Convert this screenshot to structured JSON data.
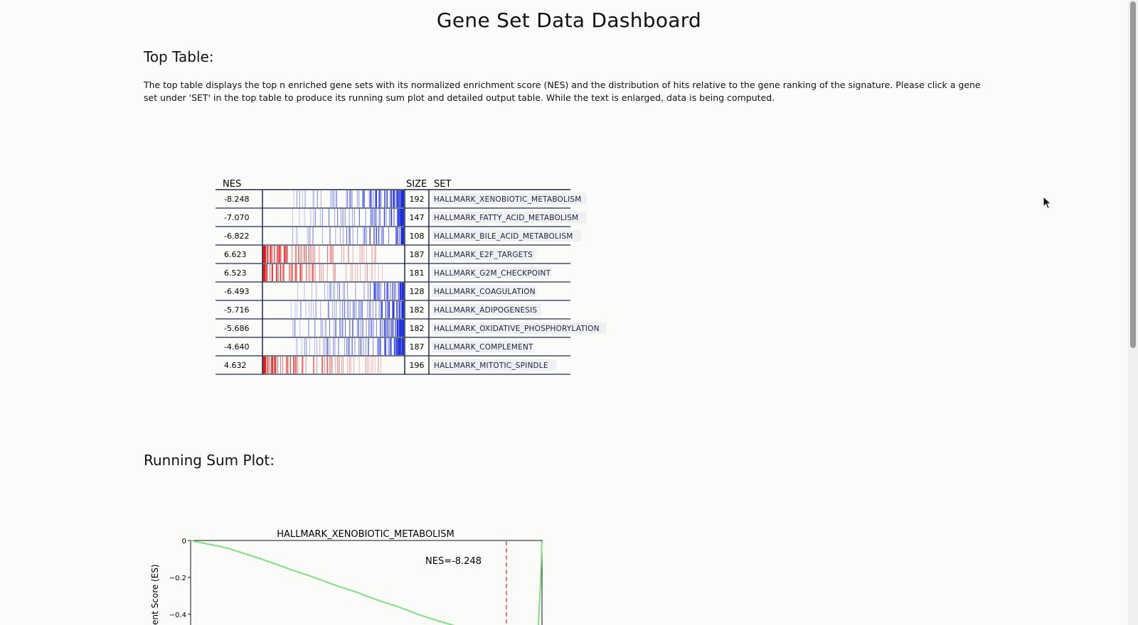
{
  "page": {
    "title": "Gene Set Data Dashboard"
  },
  "top_table": {
    "heading": "Top Table:",
    "description": "The top table displays the top n enriched gene sets with its normalized enrichment score (NES) and the distribution of hits relative to the gene ranking of the signature. Please click a gene set under 'SET' in the top table to produce its running sum plot and detailed output table. While the text is enlarged, data is being computed.",
    "columns": {
      "nes": "NES",
      "size": "SIZE",
      "set": "SET"
    },
    "colors": {
      "negative": "#1f2fd6",
      "positive": "#d91e1e",
      "border": "#1c2b4a",
      "label_bg": "#eef0f3"
    },
    "rows": [
      {
        "nes": "-8.248",
        "size": "192",
        "set": "HALLMARK_XENOBIOTIC_METABOLISM",
        "direction": "negative"
      },
      {
        "nes": "-7.070",
        "size": "147",
        "set": "HALLMARK_FATTY_ACID_METABOLISM",
        "direction": "negative"
      },
      {
        "nes": "-6.822",
        "size": "108",
        "set": "HALLMARK_BILE_ACID_METABOLISM",
        "direction": "negative"
      },
      {
        "nes": "6.623",
        "size": "187",
        "set": "HALLMARK_E2F_TARGETS",
        "direction": "positive"
      },
      {
        "nes": "6.523",
        "size": "181",
        "set": "HALLMARK_G2M_CHECKPOINT",
        "direction": "positive"
      },
      {
        "nes": "-6.493",
        "size": "128",
        "set": "HALLMARK_COAGULATION",
        "direction": "negative"
      },
      {
        "nes": "-5.716",
        "size": "182",
        "set": "HALLMARK_ADIPOGENESIS",
        "direction": "negative"
      },
      {
        "nes": "-5.686",
        "size": "182",
        "set": "HALLMARK_OXIDATIVE_PHOSPHORYLATION",
        "direction": "negative"
      },
      {
        "nes": "-4.640",
        "size": "187",
        "set": "HALLMARK_COMPLEMENT",
        "direction": "negative"
      },
      {
        "nes": "4.632",
        "size": "196",
        "set": "HALLMARK_MITOTIC_SPINDLE",
        "direction": "positive"
      }
    ]
  },
  "running_sum": {
    "heading": "Running Sum Plot:",
    "chart_data": {
      "type": "line",
      "title": "HALLMARK_XENOBIOTIC_METABOLISM",
      "ylabel": "ent Score (ES)",
      "yticks": [
        "0",
        "−0.2",
        "−0.4"
      ],
      "annotation": "NES=-8.248",
      "line_color": "#7ee07e",
      "cutoff_color": "#d42a2a",
      "y": [
        0,
        -0.008,
        -0.02,
        -0.03,
        -0.045,
        -0.08,
        -0.12,
        -0.16,
        -0.2,
        -0.24,
        -0.28,
        -0.32,
        -0.36,
        -0.4,
        -0.44,
        -0.47
      ],
      "x_fraction_visible": [
        0,
        0.02,
        0.05,
        0.08,
        0.11,
        0.17,
        0.23,
        0.29,
        0.35,
        0.41,
        0.47,
        0.53,
        0.59,
        0.65,
        0.71,
        0.77
      ]
    }
  },
  "cursor": {
    "icon": "mouse-pointer-icon"
  }
}
